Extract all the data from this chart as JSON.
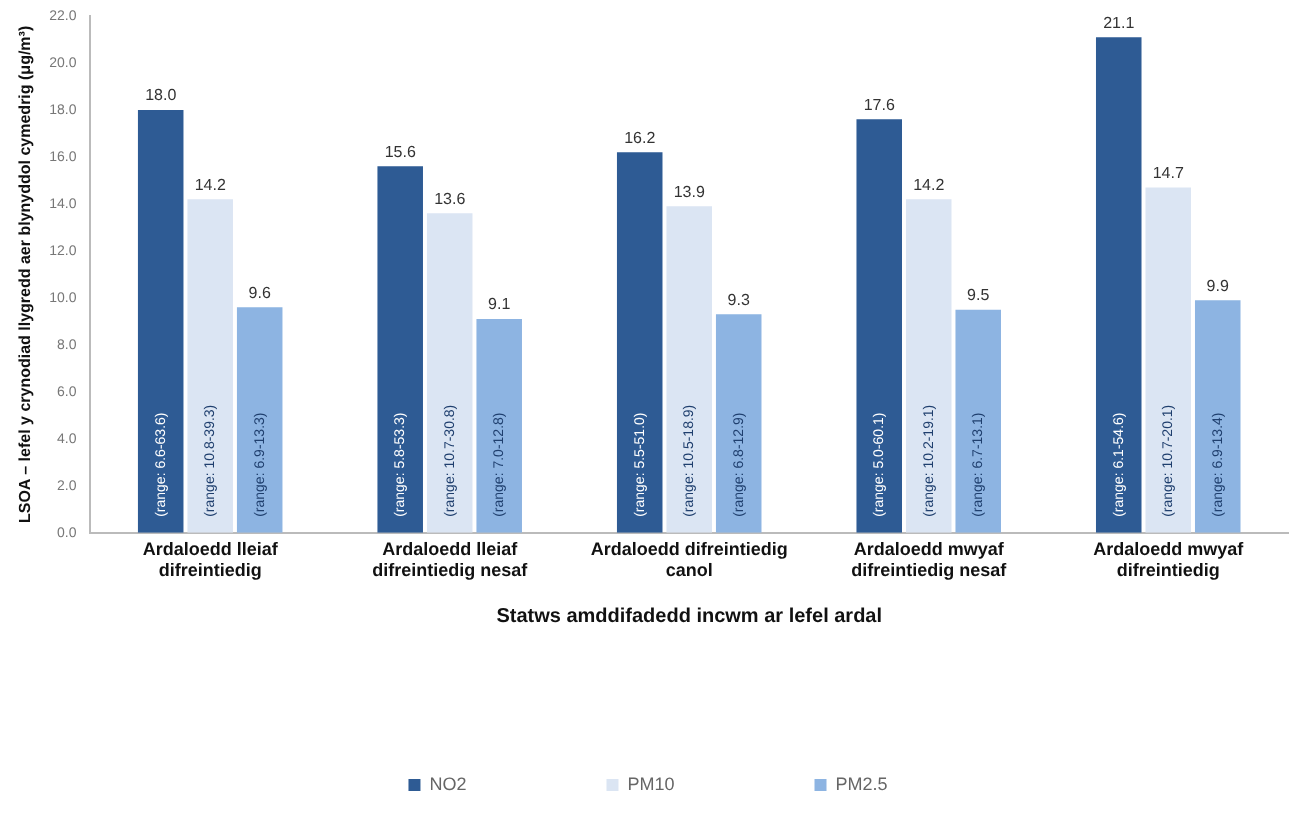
{
  "chart_data": {
    "type": "bar",
    "xlabel": "Statws amddifadedd incwm ar lefel ardal",
    "ylabel": "LSOA – lefel y crynodiad llygredd aer blynyddol cymedrig (μg/m³)",
    "categories": [
      "Ardaloedd lleiaf\ndifreintiedig",
      "Ardaloedd lleiaf\ndifreintiedig nesaf",
      "Ardaloedd difreintiedig\ncanol",
      "Ardaloedd mwyaf\ndifreintiedig nesaf",
      "Ardaloedd mwyaf\ndifreintiedig"
    ],
    "series": [
      {
        "name": "NO2",
        "color": "#2e5b94",
        "values": [
          18.0,
          15.6,
          16.2,
          17.6,
          21.1
        ],
        "value_labels": [
          "18.0",
          "15.6",
          "16.2",
          "17.6",
          "21.1"
        ]
      },
      {
        "name": "PM10",
        "color": "#dbe5f3",
        "values": [
          14.2,
          13.6,
          13.9,
          14.2,
          14.7
        ],
        "value_labels": [
          "14.2",
          "13.6",
          "13.9",
          "14.2",
          "14.7"
        ]
      },
      {
        "name": "PM2.5",
        "color": "#8db4e2",
        "values": [
          9.6,
          9.1,
          9.3,
          9.5,
          9.9
        ],
        "value_labels": [
          "9.6",
          "9.1",
          "9.3",
          "9.5",
          "9.9"
        ]
      }
    ],
    "ylim": [
      0,
      22
    ],
    "yticks": [
      {
        "value": 0,
        "label": "0.0"
      },
      {
        "value": 2,
        "label": "2.0"
      },
      {
        "value": 4,
        "label": "4.0"
      },
      {
        "value": 6,
        "label": "6.0"
      },
      {
        "value": 8,
        "label": "8.0"
      },
      {
        "value": 10,
        "label": "10.0"
      },
      {
        "value": 12,
        "label": "12.0"
      },
      {
        "value": 14,
        "label": "14.0"
      },
      {
        "value": 16,
        "label": "16.0"
      },
      {
        "value": 18,
        "label": "18.0"
      },
      {
        "value": 20,
        "label": "20.0"
      },
      {
        "value": 22,
        "label": "22.0"
      }
    ],
    "grid": false,
    "legend": "bottom",
    "annotations": [
      "(range: 6.6-63.6)",
      "(range: 10.8-39.3)",
      "(range: 6.9-13.3)",
      "(range: 5.8-53.3)",
      "(range: 10.7-30.8)",
      "(range: 7.0-12.8)",
      "(range: 5.5-51.0)",
      "(range: 10.5-18.9)",
      "(range: 6.8-12.9)",
      "(range: 5.0-60.1)",
      "(range: 10.2-19.1)",
      "(range: 6.7-13.1)",
      "(range: 6.1-54.6)",
      "(range: 10.7-20.1)",
      "(range: 6.9-13.4)"
    ]
  }
}
